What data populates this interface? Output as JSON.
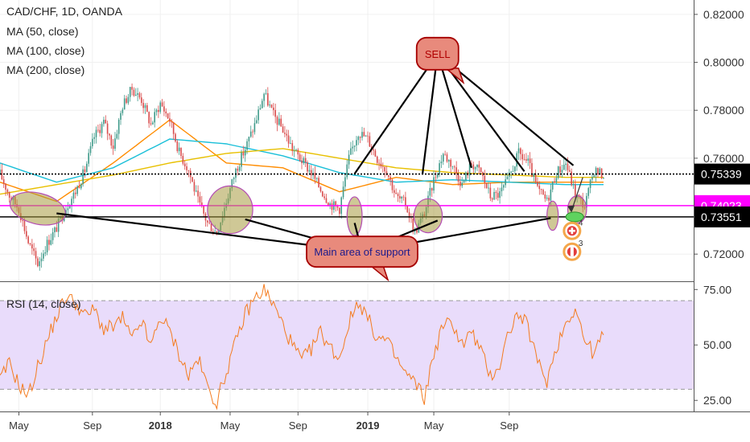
{
  "chart_data": [
    {
      "type": "candlestick",
      "title": "CAD/CHF, 1D, OANDA",
      "indicators": [
        "MA (50, close)",
        "MA (100, close)",
        "MA (200, close)"
      ],
      "ylim": [
        0.709,
        0.826
      ],
      "y_ticks": [
        "0.82000",
        "0.80000",
        "0.78000",
        "0.76000",
        "0.72000"
      ],
      "price_badges": [
        {
          "label": "0.75339",
          "value": 0.75339,
          "bg": "#000000",
          "fg": "#ffffff",
          "line": "dotted"
        },
        {
          "label": "0.74023",
          "value": 0.74023,
          "bg": "#ff00ff",
          "fg": "#ffffff",
          "line": "solid"
        },
        {
          "label": "0.73551",
          "value": 0.73551,
          "bg": "#000000",
          "fg": "#ffffff",
          "line": "solid"
        }
      ],
      "price_path": [
        [
          0,
          0.7535
        ],
        [
          5,
          0.7445
        ],
        [
          10,
          0.739
        ],
        [
          15,
          0.725
        ],
        [
          20,
          0.716
        ],
        [
          25,
          0.7245
        ],
        [
          30,
          0.731
        ],
        [
          35,
          0.7395
        ],
        [
          40,
          0.746
        ],
        [
          45,
          0.755
        ],
        [
          50,
          0.769
        ],
        [
          55,
          0.775
        ],
        [
          60,
          0.765
        ],
        [
          65,
          0.782
        ],
        [
          70,
          0.789
        ],
        [
          75,
          0.7845
        ],
        [
          80,
          0.774
        ],
        [
          85,
          0.783
        ],
        [
          90,
          0.776
        ],
        [
          95,
          0.7625
        ],
        [
          100,
          0.755
        ],
        [
          105,
          0.742
        ],
        [
          110,
          0.733
        ],
        [
          115,
          0.729
        ],
        [
          120,
          0.742
        ],
        [
          125,
          0.755
        ],
        [
          130,
          0.764
        ],
        [
          135,
          0.774
        ],
        [
          140,
          0.787
        ],
        [
          145,
          0.778
        ],
        [
          150,
          0.772
        ],
        [
          155,
          0.764
        ],
        [
          160,
          0.759
        ],
        [
          165,
          0.754
        ],
        [
          170,
          0.747
        ],
        [
          175,
          0.741
        ],
        [
          180,
          0.739
        ],
        [
          185,
          0.76
        ],
        [
          190,
          0.771
        ],
        [
          195,
          0.768
        ],
        [
          200,
          0.76
        ],
        [
          205,
          0.755
        ],
        [
          210,
          0.744
        ],
        [
          215,
          0.741
        ],
        [
          220,
          0.729
        ],
        [
          225,
          0.737
        ],
        [
          230,
          0.751
        ],
        [
          235,
          0.762
        ],
        [
          240,
          0.757
        ],
        [
          245,
          0.749
        ],
        [
          250,
          0.758
        ],
        [
          255,
          0.754
        ],
        [
          260,
          0.744
        ],
        [
          265,
          0.745
        ],
        [
          270,
          0.752
        ],
        [
          275,
          0.762
        ],
        [
          280,
          0.758
        ],
        [
          285,
          0.747
        ],
        [
          290,
          0.742
        ],
        [
          295,
          0.754
        ],
        [
          300,
          0.758
        ],
        [
          305,
          0.745
        ],
        [
          310,
          0.74
        ],
        [
          315,
          0.755
        ],
        [
          320,
          0.753
        ]
      ],
      "ma_series": [
        {
          "name": "MA (50, close)",
          "color": "#ff8c00",
          "points": [
            [
              0,
              0.75
            ],
            [
              30,
              0.742
            ],
            [
              60,
              0.758
            ],
            [
              90,
              0.776
            ],
            [
              120,
              0.758
            ],
            [
              150,
              0.756
            ],
            [
              180,
              0.746
            ],
            [
              210,
              0.752
            ],
            [
              240,
              0.749
            ],
            [
              270,
              0.75
            ],
            [
              300,
              0.75
            ],
            [
              320,
              0.75
            ]
          ]
        },
        {
          "name": "MA (100, close)",
          "color": "#19bfd8",
          "points": [
            [
              0,
              0.758
            ],
            [
              30,
              0.75
            ],
            [
              60,
              0.756
            ],
            [
              90,
              0.768
            ],
            [
              120,
              0.766
            ],
            [
              150,
              0.761
            ],
            [
              180,
              0.754
            ],
            [
              210,
              0.75
            ],
            [
              240,
              0.751
            ],
            [
              270,
              0.75
            ],
            [
              300,
              0.749
            ],
            [
              320,
              0.749
            ]
          ]
        },
        {
          "name": "MA (200, close)",
          "color": "#e8c000",
          "points": [
            [
              0,
              0.745
            ],
            [
              30,
              0.749
            ],
            [
              60,
              0.753
            ],
            [
              90,
              0.758
            ],
            [
              120,
              0.762
            ],
            [
              150,
              0.764
            ],
            [
              180,
              0.76
            ],
            [
              210,
              0.756
            ],
            [
              240,
              0.754
            ],
            [
              270,
              0.753
            ],
            [
              300,
              0.752
            ],
            [
              320,
              0.752
            ]
          ]
        }
      ],
      "support_ellipses": [
        {
          "x": 20,
          "y": 0.739,
          "w": 30,
          "h": 0.0035,
          "angle": 14
        },
        {
          "x": 122,
          "y": 0.7385,
          "w": 24,
          "h": 0.0105
        },
        {
          "x": 188,
          "y": 0.7358,
          "w": 8,
          "h": 0.0068
        },
        {
          "x": 227,
          "y": 0.736,
          "w": 15,
          "h": 0.0048
        },
        {
          "x": 293,
          "y": 0.736,
          "w": 6,
          "h": 0.0028
        },
        {
          "x": 306,
          "y": 0.7386,
          "w": 10,
          "h": 0.002
        }
      ],
      "sell_callout": {
        "text": "SELL",
        "anchor": {
          "x": 232,
          "y": 0.8036
        },
        "targets": [
          {
            "x": 188,
            "y": 0.7535
          },
          {
            "x": 224,
            "y": 0.7533
          },
          {
            "x": 250,
            "y": 0.756
          },
          {
            "x": 278,
            "y": 0.7545
          },
          {
            "x": 304,
            "y": 0.757
          }
        ]
      },
      "support_callout": {
        "text": "Main area of support",
        "anchor": {
          "x": 192,
          "y": 0.721
        },
        "targets": [
          {
            "x": 30,
            "y": 0.737
          },
          {
            "x": 130,
            "y": 0.7345
          },
          {
            "x": 188,
            "y": 0.733
          },
          {
            "x": 232,
            "y": 0.734
          },
          {
            "x": 292,
            "y": 0.735
          }
        ]
      },
      "event_markers": [
        {
          "count": "4",
          "flag": "Switzerland",
          "x": 305,
          "y": 0.7297
        },
        {
          "count": "3",
          "flag": "Canada",
          "x": 305,
          "y": 0.721
        }
      ],
      "projection_arrow": {
        "from": {
          "x": 309,
          "y": 0.752
        },
        "to": {
          "x": 303,
          "y": 0.738
        }
      }
    },
    {
      "type": "line",
      "title": "RSI (14, close)",
      "ylim": [
        20,
        78
      ],
      "y_ticks": [
        "75.00",
        "50.00",
        "25.00"
      ],
      "upper_band": 70,
      "lower_band": 30,
      "color": "#f47c20",
      "band_fill": "#e9dcfb",
      "points": [
        [
          0,
          34
        ],
        [
          5,
          42
        ],
        [
          10,
          32
        ],
        [
          15,
          27
        ],
        [
          20,
          40
        ],
        [
          25,
          52
        ],
        [
          30,
          63
        ],
        [
          35,
          72
        ],
        [
          40,
          69
        ],
        [
          45,
          63
        ],
        [
          50,
          66
        ],
        [
          55,
          57
        ],
        [
          60,
          58
        ],
        [
          65,
          62
        ],
        [
          70,
          52
        ],
        [
          75,
          61
        ],
        [
          80,
          49
        ],
        [
          85,
          63
        ],
        [
          90,
          56
        ],
        [
          95,
          46
        ],
        [
          100,
          36
        ],
        [
          105,
          44
        ],
        [
          110,
          31
        ],
        [
          115,
          24
        ],
        [
          120,
          38
        ],
        [
          125,
          51
        ],
        [
          130,
          64
        ],
        [
          135,
          71
        ],
        [
          140,
          75
        ],
        [
          145,
          68
        ],
        [
          150,
          59
        ],
        [
          155,
          50
        ],
        [
          160,
          43
        ],
        [
          165,
          48
        ],
        [
          170,
          56
        ],
        [
          175,
          49
        ],
        [
          180,
          44
        ],
        [
          185,
          60
        ],
        [
          190,
          70
        ],
        [
          195,
          62
        ],
        [
          200,
          53
        ],
        [
          205,
          52
        ],
        [
          210,
          44
        ],
        [
          215,
          37
        ],
        [
          220,
          33
        ],
        [
          225,
          26
        ],
        [
          230,
          46
        ],
        [
          235,
          59
        ],
        [
          240,
          60
        ],
        [
          245,
          50
        ],
        [
          250,
          56
        ],
        [
          255,
          47
        ],
        [
          260,
          36
        ],
        [
          265,
          41
        ],
        [
          270,
          57
        ],
        [
          275,
          64
        ],
        [
          280,
          58
        ],
        [
          285,
          42
        ],
        [
          290,
          34
        ],
        [
          295,
          49
        ],
        [
          300,
          60
        ],
        [
          305,
          67
        ],
        [
          310,
          52
        ],
        [
          315,
          46
        ],
        [
          320,
          55
        ]
      ]
    }
  ],
  "x_axis_labels": [
    {
      "label": "May",
      "x": 10,
      "bold": false
    },
    {
      "label": "Sep",
      "x": 49,
      "bold": false
    },
    {
      "label": "2018",
      "x": 85,
      "bold": true
    },
    {
      "label": "May",
      "x": 122,
      "bold": false
    },
    {
      "label": "Sep",
      "x": 158,
      "bold": false
    },
    {
      "label": "2019",
      "x": 195,
      "bold": true
    },
    {
      "label": "May",
      "x": 230,
      "bold": false
    },
    {
      "label": "Sep",
      "x": 270,
      "bold": false
    }
  ],
  "colors": {
    "background": "#ffffff",
    "grid": "#f0f0f0",
    "candle_up": "#3f9a8a",
    "candle_down": "#d94c4c",
    "callout_fill": "#e88a7c",
    "callout_stroke": "#a60000",
    "support_text_color": "#1a1a8c",
    "sell_text_color": "#b00000",
    "ellipse_fill": "#a89a40"
  }
}
